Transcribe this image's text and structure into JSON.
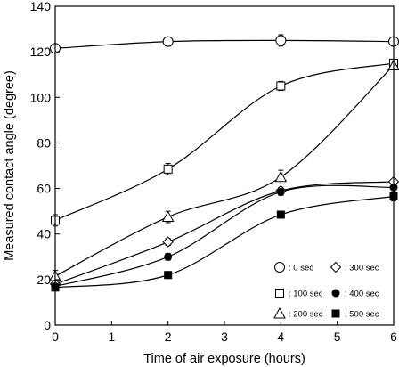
{
  "chart_data": {
    "type": "line",
    "xlabel": "Time of air exposure (hours)",
    "ylabel": "Measured contact angle (degree)",
    "xlim": [
      0,
      6
    ],
    "ylim": [
      0,
      140
    ],
    "x_ticks": [
      0,
      1,
      2,
      3,
      4,
      5,
      6
    ],
    "y_ticks": [
      0,
      20,
      40,
      60,
      80,
      100,
      120,
      140
    ],
    "x_tick_labels": [
      "0",
      "1",
      "2",
      "3",
      "4",
      "5",
      "6"
    ],
    "y_tick_labels": [
      "0",
      "20",
      "40",
      "60",
      "80",
      "100",
      "120",
      "140"
    ],
    "grid": false,
    "legend_placement": "bottom-right",
    "x": [
      0,
      2,
      4,
      6
    ],
    "series": [
      {
        "name": ": 0 sec",
        "marker": "circle-open",
        "values": [
          121.5,
          124.5,
          125,
          124.5
        ],
        "errors": [
          0,
          2,
          2.5,
          0
        ]
      },
      {
        "name": ": 100 sec",
        "marker": "square-open",
        "values": [
          46,
          68.5,
          105,
          115
        ],
        "errors": [
          2.5,
          2.5,
          2,
          0
        ]
      },
      {
        "name": ": 200 sec",
        "marker": "triangle-open",
        "values": [
          21.5,
          47.5,
          65,
          114
        ],
        "errors": [
          2.5,
          2.5,
          3,
          0
        ]
      },
      {
        "name": ": 300 sec",
        "marker": "diamond-open",
        "values": [
          18,
          36.5,
          59,
          63
        ],
        "errors": [
          0,
          1.5,
          1.5,
          0
        ]
      },
      {
        "name": ": 400 sec",
        "marker": "circle-filled",
        "values": [
          17,
          30,
          58.5,
          60.5
        ],
        "errors": [
          0,
          1.5,
          1.5,
          2
        ]
      },
      {
        "name": ": 500 sec",
        "marker": "square-filled",
        "values": [
          16.5,
          22,
          48.5,
          56.5
        ],
        "errors": [
          0,
          1.5,
          1.5,
          2
        ]
      }
    ]
  }
}
